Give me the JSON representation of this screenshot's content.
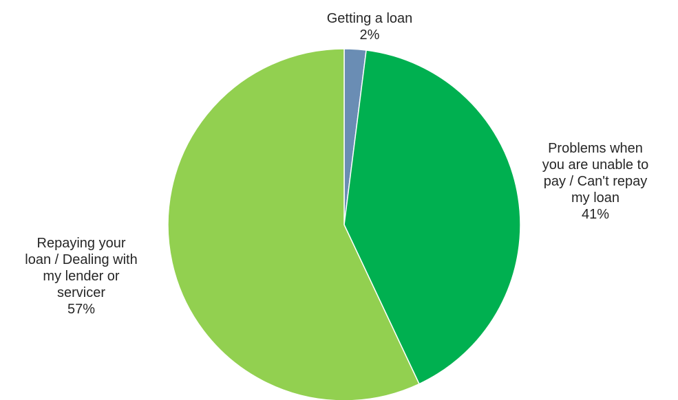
{
  "chart_data": {
    "type": "pie",
    "start_angle_deg": 0,
    "direction": "clockwise",
    "slices": [
      {
        "name_lines": [
          "Getting a loan"
        ],
        "percent_label": "2%",
        "value": 2,
        "color": "#6a8db4"
      },
      {
        "name_lines": [
          "Problems when",
          "you are unable to",
          "pay / Can't repay",
          "my loan"
        ],
        "percent_label": "41%",
        "value": 41,
        "color": "#00b050"
      },
      {
        "name_lines": [
          "Repaying your",
          "loan / Dealing with",
          "my lender or",
          "servicer"
        ],
        "percent_label": "57%",
        "value": 57,
        "color": "#92d050"
      }
    ]
  }
}
